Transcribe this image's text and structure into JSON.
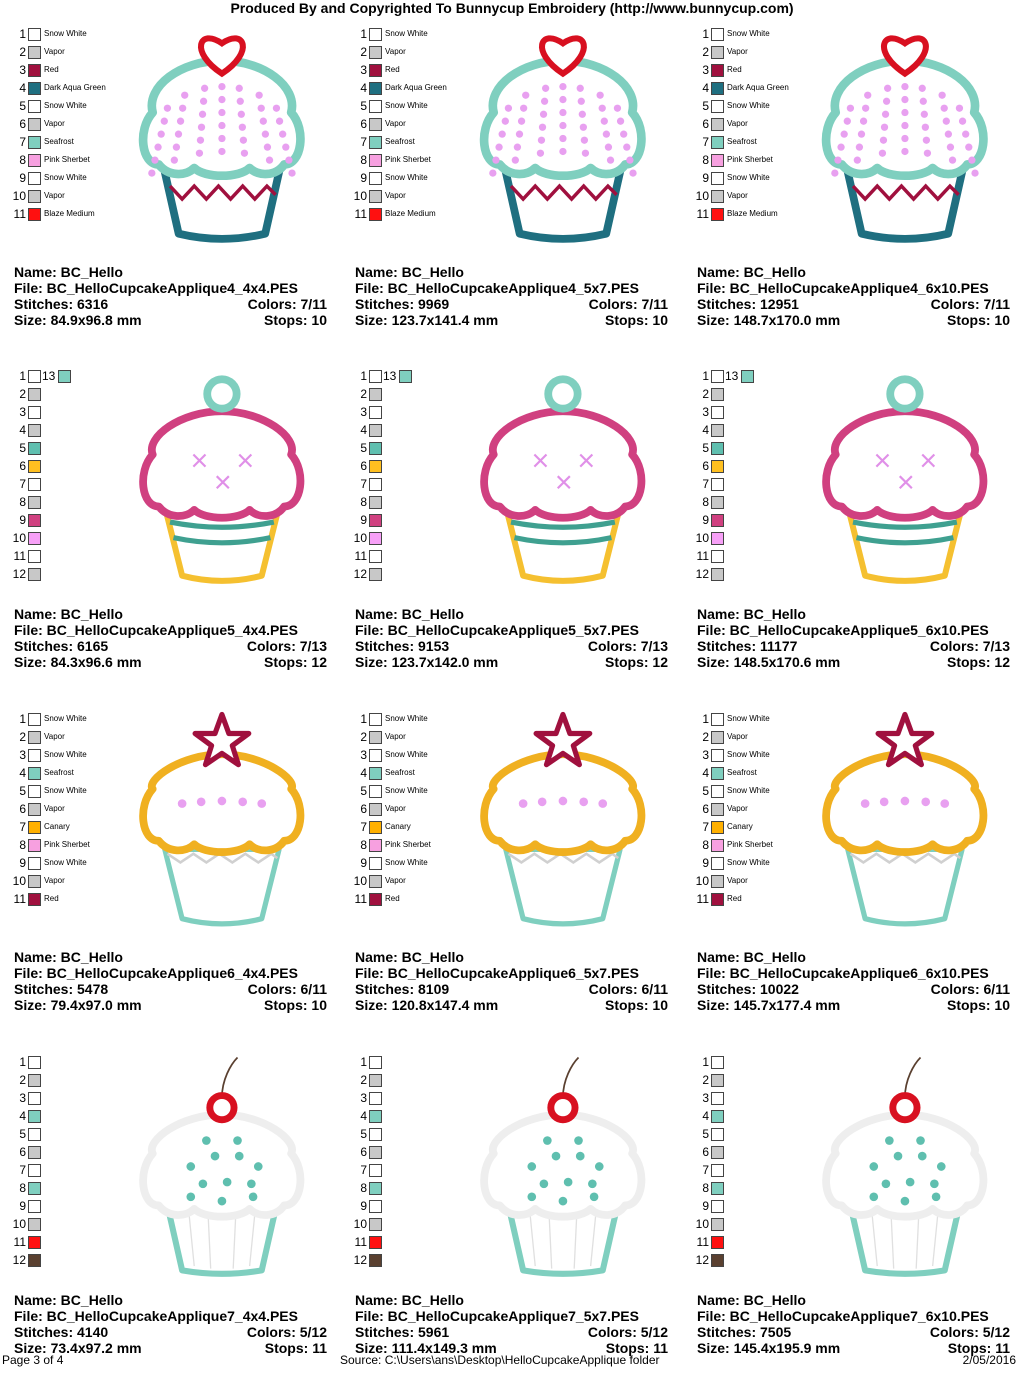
{
  "header": "Produced By and Copyrighted To Bunnycup Embroidery (http://www.bunnycup.com)",
  "labels": {
    "name": "Name:",
    "file": "File:",
    "stitches": "Stitches:",
    "colors": "Colors:",
    "size": "Size:",
    "stops": "Stops:"
  },
  "footer": {
    "page": "Page 3 of 4",
    "source": "Source: C:\\Users\\ans\\Desktop\\HelloCupcakeApplique folder",
    "date": "2/05/2016"
  },
  "legends": {
    "a": [
      {
        "n": "1",
        "c": "#ffffff",
        "t": "Snow White"
      },
      {
        "n": "2",
        "c": "#c8c8c8",
        "t": "Vapor"
      },
      {
        "n": "3",
        "c": "#a0103e",
        "t": "Red"
      },
      {
        "n": "4",
        "c": "#1f6f80",
        "t": "Dark Aqua Green"
      },
      {
        "n": "5",
        "c": "#ffffff",
        "t": "Snow White"
      },
      {
        "n": "6",
        "c": "#c8c8c8",
        "t": "Vapor"
      },
      {
        "n": "7",
        "c": "#7fcfbf",
        "t": "Seafrost"
      },
      {
        "n": "8",
        "c": "#f7a0e0",
        "t": "Pink Sherbet"
      },
      {
        "n": "9",
        "c": "#ffffff",
        "t": "Snow White"
      },
      {
        "n": "10",
        "c": "#c8c8c8",
        "t": "Vapor"
      },
      {
        "n": "11",
        "c": "#ff1010",
        "t": "Blaze Medium"
      }
    ],
    "b": [
      {
        "n": "1",
        "c": "#ffffff",
        "t": ""
      },
      {
        "n": "2",
        "c": "#c8c8c8",
        "t": ""
      },
      {
        "n": "3",
        "c": "#ffffff",
        "t": ""
      },
      {
        "n": "4",
        "c": "#c8c8c8",
        "t": ""
      },
      {
        "n": "5",
        "c": "#5fbfaf",
        "t": ""
      },
      {
        "n": "6",
        "c": "#ffc020",
        "t": ""
      },
      {
        "n": "7",
        "c": "#ffffff",
        "t": ""
      },
      {
        "n": "8",
        "c": "#c8c8c8",
        "t": ""
      },
      {
        "n": "9",
        "c": "#d04080",
        "t": ""
      },
      {
        "n": "10",
        "c": "#f7a0f7",
        "t": ""
      },
      {
        "n": "11",
        "c": "#ffffff",
        "t": ""
      },
      {
        "n": "12",
        "c": "#c8c8c8",
        "t": ""
      }
    ],
    "c": [
      {
        "n": "1",
        "c": "#ffffff",
        "t": "Snow White"
      },
      {
        "n": "2",
        "c": "#c8c8c8",
        "t": "Vapor"
      },
      {
        "n": "3",
        "c": "#ffffff",
        "t": "Snow White"
      },
      {
        "n": "4",
        "c": "#7fcfbf",
        "t": "Seafrost"
      },
      {
        "n": "5",
        "c": "#ffffff",
        "t": "Snow White"
      },
      {
        "n": "6",
        "c": "#c8c8c8",
        "t": "Vapor"
      },
      {
        "n": "7",
        "c": "#ffb000",
        "t": "Canary"
      },
      {
        "n": "8",
        "c": "#f7a0e0",
        "t": "Pink Sherbet"
      },
      {
        "n": "9",
        "c": "#ffffff",
        "t": "Snow White"
      },
      {
        "n": "10",
        "c": "#c8c8c8",
        "t": "Vapor"
      },
      {
        "n": "11",
        "c": "#a0103e",
        "t": "Red"
      }
    ],
    "d": [
      {
        "n": "1",
        "c": "#ffffff",
        "t": ""
      },
      {
        "n": "2",
        "c": "#c8c8c8",
        "t": ""
      },
      {
        "n": "3",
        "c": "#ffffff",
        "t": ""
      },
      {
        "n": "4",
        "c": "#7fcfbf",
        "t": ""
      },
      {
        "n": "5",
        "c": "#ffffff",
        "t": ""
      },
      {
        "n": "6",
        "c": "#c8c8c8",
        "t": ""
      },
      {
        "n": "7",
        "c": "#ffffff",
        "t": ""
      },
      {
        "n": "8",
        "c": "#7fcfbf",
        "t": ""
      },
      {
        "n": "9",
        "c": "#ffffff",
        "t": ""
      },
      {
        "n": "10",
        "c": "#c8c8c8",
        "t": ""
      },
      {
        "n": "11",
        "c": "#ff1010",
        "t": ""
      },
      {
        "n": "12",
        "c": "#5a4030",
        "t": ""
      }
    ]
  },
  "designs": [
    {
      "legend": "a",
      "art": "heart",
      "extra": "",
      "name": "BC_Hello",
      "file": "BC_HelloCupcakeApplique4_4x4.PES",
      "stitches": "6316",
      "colors": "7/11",
      "size": "84.9x96.8 mm",
      "stops": "10"
    },
    {
      "legend": "a",
      "art": "heart",
      "extra": "",
      "name": "BC_Hello",
      "file": "BC_HelloCupcakeApplique4_5x7.PES",
      "stitches": "9969",
      "colors": "7/11",
      "size": "123.7x141.4 mm",
      "stops": "10"
    },
    {
      "legend": "a",
      "art": "heart",
      "extra": "",
      "name": "BC_Hello",
      "file": "BC_HelloCupcakeApplique4_6x10.PES",
      "stitches": "12951",
      "colors": "7/11",
      "size": "148.7x170.0 mm",
      "stops": "10"
    },
    {
      "legend": "b",
      "art": "ring",
      "extra": "13",
      "name": "BC_Hello",
      "file": "BC_HelloCupcakeApplique5_4x4.PES",
      "stitches": "6165",
      "colors": "7/13",
      "size": "84.3x96.6 mm",
      "stops": "12"
    },
    {
      "legend": "b",
      "art": "ring",
      "extra": "13",
      "name": "BC_Hello",
      "file": "BC_HelloCupcakeApplique5_5x7.PES",
      "stitches": "9153",
      "colors": "7/13",
      "size": "123.7x142.0 mm",
      "stops": "12"
    },
    {
      "legend": "b",
      "art": "ring",
      "extra": "13",
      "name": "BC_Hello",
      "file": "BC_HelloCupcakeApplique5_6x10.PES",
      "stitches": "11177",
      "colors": "7/13",
      "size": "148.5x170.6 mm",
      "stops": "12"
    },
    {
      "legend": "c",
      "art": "star",
      "extra": "",
      "name": "BC_Hello",
      "file": "BC_HelloCupcakeApplique6_4x4.PES",
      "stitches": "5478",
      "colors": "6/11",
      "size": "79.4x97.0 mm",
      "stops": "10"
    },
    {
      "legend": "c",
      "art": "star",
      "extra": "",
      "name": "BC_Hello",
      "file": "BC_HelloCupcakeApplique6_5x7.PES",
      "stitches": "8109",
      "colors": "6/11",
      "size": "120.8x147.4 mm",
      "stops": "10"
    },
    {
      "legend": "c",
      "art": "star",
      "extra": "",
      "name": "BC_Hello",
      "file": "BC_HelloCupcakeApplique6_6x10.PES",
      "stitches": "10022",
      "colors": "6/11",
      "size": "145.7x177.4 mm",
      "stops": "10"
    },
    {
      "legend": "d",
      "art": "cherry",
      "extra": "",
      "name": "BC_Hello",
      "file": "BC_HelloCupcakeApplique7_4x4.PES",
      "stitches": "4140",
      "colors": "5/12",
      "size": "73.4x97.2 mm",
      "stops": "11"
    },
    {
      "legend": "d",
      "art": "cherry",
      "extra": "",
      "name": "BC_Hello",
      "file": "BC_HelloCupcakeApplique7_5x7.PES",
      "stitches": "5961",
      "colors": "5/12",
      "size": "111.4x149.3 mm",
      "stops": "11"
    },
    {
      "legend": "d",
      "art": "cherry",
      "extra": "",
      "name": "BC_Hello",
      "file": "BC_HelloCupcakeApplique7_6x10.PES",
      "stitches": "7505",
      "colors": "5/12",
      "size": "145.4x195.9 mm",
      "stops": "11"
    }
  ]
}
